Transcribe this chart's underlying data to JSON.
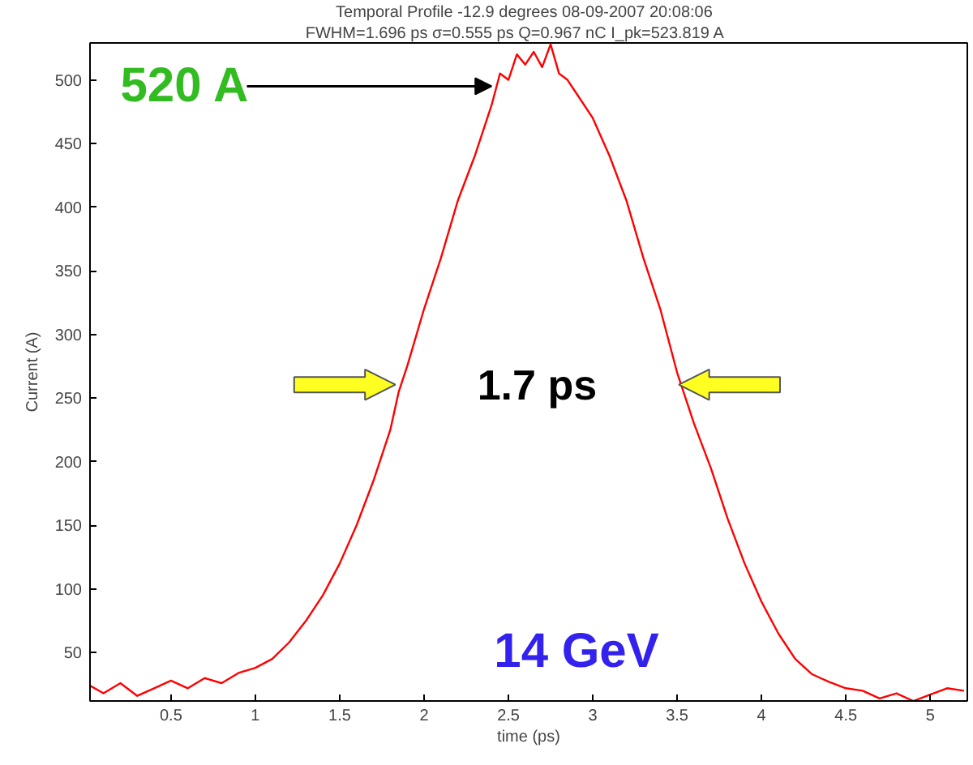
{
  "chart_data": {
    "type": "line",
    "title": "Temporal Profile  -12.9 degrees  08-09-2007 20:08:06",
    "subtitle": "FWHM=1.696 ps   σ=0.555 ps   Q=0.967 nC   I_pk=523.819 A",
    "xlabel": "time (ps)",
    "ylabel": "Current (A)",
    "xlim": [
      0.02,
      5.22
    ],
    "ylim": [
      12,
      529
    ],
    "xticks": [
      0.5,
      1,
      1.5,
      2,
      2.5,
      3,
      3.5,
      4,
      4.5,
      5
    ],
    "yticks": [
      50,
      100,
      150,
      200,
      250,
      300,
      350,
      400,
      450,
      500
    ],
    "grid": false,
    "marker": "none",
    "line_style": "solid",
    "series": [
      {
        "color": "#ff0000",
        "x": [
          0.02,
          0.1,
          0.2,
          0.3,
          0.4,
          0.5,
          0.6,
          0.7,
          0.8,
          0.9,
          1.0,
          1.1,
          1.2,
          1.3,
          1.4,
          1.5,
          1.6,
          1.7,
          1.8,
          1.85,
          1.9,
          2.0,
          2.1,
          2.2,
          2.3,
          2.4,
          2.45,
          2.5,
          2.55,
          2.6,
          2.65,
          2.7,
          2.75,
          2.8,
          2.85,
          2.9,
          3.0,
          3.1,
          3.2,
          3.3,
          3.4,
          3.5,
          3.6,
          3.7,
          3.8,
          3.9,
          4.0,
          4.1,
          4.2,
          4.3,
          4.4,
          4.5,
          4.6,
          4.7,
          4.8,
          4.9,
          5.0,
          5.1,
          5.2
        ],
        "values": [
          24,
          18,
          26,
          16,
          22,
          28,
          22,
          30,
          26,
          34,
          38,
          45,
          58,
          75,
          95,
          120,
          150,
          185,
          225,
          255,
          275,
          320,
          360,
          405,
          440,
          480,
          505,
          500,
          520,
          512,
          522,
          510,
          528,
          505,
          500,
          490,
          470,
          440,
          405,
          360,
          320,
          270,
          230,
          195,
          155,
          120,
          90,
          65,
          45,
          33,
          27,
          22,
          20,
          14,
          18,
          12,
          17,
          22,
          20
        ]
      }
    ],
    "annotations": [
      {
        "text": "520 A",
        "x": 2.4,
        "y": 495
      },
      "1.7 ps",
      "14 GeV"
    ]
  }
}
